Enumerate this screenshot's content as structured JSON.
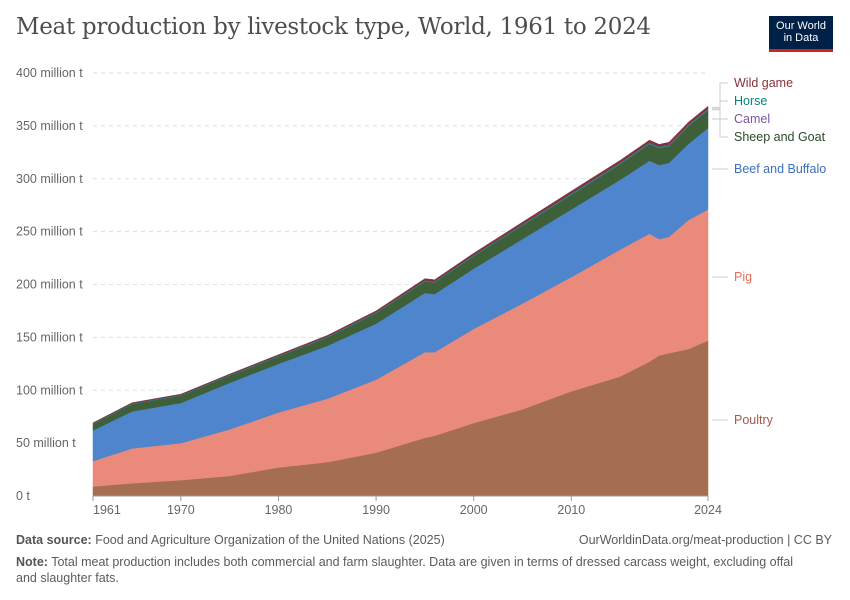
{
  "title": "Meat production by livestock type, World, 1961 to 2024",
  "logo": {
    "line1": "Our World",
    "line2": "in Data"
  },
  "footer": {
    "source_label": "Data source:",
    "source": "Food and Agriculture Organization of the United Nations (2025)",
    "url": "OurWorldinData.org/meat-production | CC BY",
    "note_label": "Note:",
    "note": "Total meat production includes both commercial and farm slaughter. Data are given in terms of dressed carcass weight, excluding offal and slaughter fats."
  },
  "chart_data": {
    "type": "area",
    "stacked": true,
    "title": "Meat production by livestock type, World, 1961 to 2024",
    "xlim": [
      1961,
      2024
    ],
    "ylim": [
      0,
      400
    ],
    "x_ticks": [
      "1961",
      "1970",
      "1980",
      "1990",
      "2000",
      "2010",
      "2024"
    ],
    "y_ticks": [
      "0 t",
      "50 million t",
      "100 million t",
      "150 million t",
      "200 million t",
      "250 million t",
      "300 million t",
      "350 million t",
      "400 million t"
    ],
    "grid": "horizontal dashed",
    "legend": "right, labels at series end",
    "unit": "million tonnes",
    "x": [
      1961,
      1965,
      1970,
      1975,
      1980,
      1985,
      1990,
      1995,
      1996,
      2000,
      2005,
      2010,
      2015,
      2018,
      2019,
      2020,
      2022,
      2024
    ],
    "series": [
      {
        "name": "Poultry",
        "color": "#a66e50",
        "label_color": "#a2584a",
        "values": [
          9,
          12,
          15,
          19,
          27,
          32,
          41,
          55,
          57,
          69,
          82,
          99,
          113,
          127,
          133,
          135,
          139,
          147
        ]
      },
      {
        "name": "Pig",
        "color": "#ea8a7b",
        "label_color": "#e56e5a",
        "values": [
          24,
          33,
          35,
          44,
          52,
          60,
          69,
          81,
          79,
          89,
          100,
          108,
          120,
          121,
          110,
          110,
          122,
          124
        ]
      },
      {
        "name": "Beef and Buffalo",
        "color": "#4e85cc",
        "label_color": "#3b6fbf",
        "values": [
          29,
          35,
          38,
          44,
          46,
          50,
          53,
          56,
          55,
          57,
          61,
          64,
          66,
          69,
          70,
          70,
          72,
          77
        ]
      },
      {
        "name": "Sheep and Goat",
        "color": "#3d6038",
        "label_color": "#2c4a2a",
        "values": [
          6,
          7,
          7,
          7,
          7,
          8,
          10,
          11,
          11,
          12,
          13,
          14,
          15,
          16,
          16,
          16,
          17,
          17
        ]
      },
      {
        "name": "Camel",
        "color": "#8c6bb1",
        "label_color": "#7a55a8",
        "values": [
          0.2,
          0.2,
          0.2,
          0.2,
          0.3,
          0.3,
          0.3,
          0.3,
          0.3,
          0.3,
          0.4,
          0.5,
          0.5,
          0.6,
          0.6,
          0.6,
          0.6,
          0.6
        ]
      },
      {
        "name": "Horse",
        "color": "#00847e",
        "label_color": "#00847e",
        "values": [
          0.5,
          0.5,
          0.5,
          0.5,
          0.5,
          0.5,
          0.6,
          0.7,
          0.7,
          0.7,
          0.8,
          0.8,
          0.9,
          0.9,
          0.9,
          0.9,
          0.9,
          0.9
        ]
      },
      {
        "name": "Wild game",
        "color": "#883039",
        "label_color": "#883039",
        "values": [
          0.5,
          0.5,
          0.6,
          0.6,
          0.8,
          1.0,
          1.2,
          1.5,
          1.5,
          1.6,
          1.8,
          2.0,
          2.0,
          2.0,
          2.0,
          2.0,
          2.0,
          2.0
        ]
      }
    ]
  }
}
